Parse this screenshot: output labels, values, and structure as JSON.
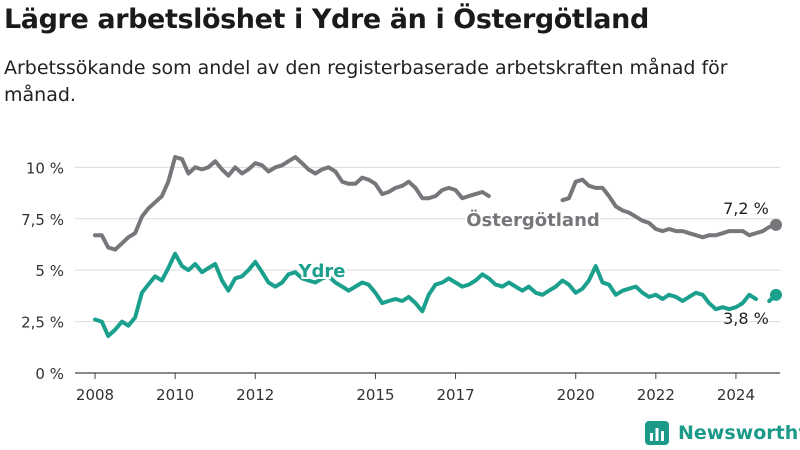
{
  "title": "Lägre arbetslöshet i Ydre än i Östergötland",
  "subtitle": "Arbetssökande som andel av den registerbaserade arbetskraften månad för månad.",
  "brand": {
    "name": "Newsworthy",
    "color": "#1b9a8a"
  },
  "chart_data": {
    "type": "line",
    "title": "Lägre arbetslöshet i Ydre än i Östergötland",
    "subtitle": "Arbetssökande som andel av den registerbaserade arbetskraften månad för månad.",
    "x_ticks": [
      2008,
      2010,
      2012,
      2015,
      2017,
      2020,
      2022,
      2024
    ],
    "y_ticks": [
      0,
      2.5,
      5,
      7.5,
      10
    ],
    "y_tick_labels": [
      "0 %",
      "2,5 %",
      "5 %",
      "7,5 %",
      "10 %"
    ],
    "xlim": [
      2007.5,
      2025.1
    ],
    "ylim": [
      0,
      10.6
    ],
    "grid": "horizontal",
    "series": [
      {
        "name": "Östergötland",
        "color": "#77767b",
        "end_label": "7,2 %",
        "points": [
          [
            2008.0,
            6.7
          ],
          [
            2008.17,
            6.7
          ],
          [
            2008.33,
            6.1
          ],
          [
            2008.5,
            6.0
          ],
          [
            2008.67,
            6.3
          ],
          [
            2008.83,
            6.6
          ],
          [
            2009.0,
            6.8
          ],
          [
            2009.17,
            7.6
          ],
          [
            2009.33,
            8.0
          ],
          [
            2009.5,
            8.3
          ],
          [
            2009.67,
            8.6
          ],
          [
            2009.83,
            9.3
          ],
          [
            2010.0,
            10.5
          ],
          [
            2010.17,
            10.4
          ],
          [
            2010.33,
            9.7
          ],
          [
            2010.5,
            10.0
          ],
          [
            2010.67,
            9.9
          ],
          [
            2010.83,
            10.0
          ],
          [
            2011.0,
            10.3
          ],
          [
            2011.17,
            9.9
          ],
          [
            2011.33,
            9.6
          ],
          [
            2011.5,
            10.0
          ],
          [
            2011.67,
            9.7
          ],
          [
            2011.83,
            9.9
          ],
          [
            2012.0,
            10.2
          ],
          [
            2012.17,
            10.1
          ],
          [
            2012.33,
            9.8
          ],
          [
            2012.5,
            10.0
          ],
          [
            2012.67,
            10.1
          ],
          [
            2012.83,
            10.3
          ],
          [
            2013.0,
            10.5
          ],
          [
            2013.17,
            10.2
          ],
          [
            2013.33,
            9.9
          ],
          [
            2013.5,
            9.7
          ],
          [
            2013.67,
            9.9
          ],
          [
            2013.83,
            10.0
          ],
          [
            2014.0,
            9.8
          ],
          [
            2014.17,
            9.3
          ],
          [
            2014.33,
            9.2
          ],
          [
            2014.5,
            9.2
          ],
          [
            2014.67,
            9.5
          ],
          [
            2014.83,
            9.4
          ],
          [
            2015.0,
            9.2
          ],
          [
            2015.17,
            8.7
          ],
          [
            2015.33,
            8.8
          ],
          [
            2015.5,
            9.0
          ],
          [
            2015.67,
            9.1
          ],
          [
            2015.83,
            9.3
          ],
          [
            2016.0,
            9.0
          ],
          [
            2016.17,
            8.5
          ],
          [
            2016.33,
            8.5
          ],
          [
            2016.5,
            8.6
          ],
          [
            2016.67,
            8.9
          ],
          [
            2016.83,
            9.0
          ],
          [
            2017.0,
            8.9
          ],
          [
            2017.17,
            8.5
          ],
          [
            2017.33,
            8.6
          ],
          [
            2017.5,
            8.7
          ],
          [
            2017.67,
            8.8
          ],
          [
            2017.83,
            8.6
          ]
        ],
        "points_2": [
          [
            2019.67,
            8.4
          ],
          [
            2019.83,
            8.5
          ],
          [
            2020.0,
            9.3
          ],
          [
            2020.17,
            9.4
          ],
          [
            2020.33,
            9.1
          ],
          [
            2020.5,
            9.0
          ],
          [
            2020.67,
            9.0
          ],
          [
            2020.83,
            8.6
          ],
          [
            2021.0,
            8.1
          ],
          [
            2021.17,
            7.9
          ],
          [
            2021.33,
            7.8
          ],
          [
            2021.5,
            7.6
          ],
          [
            2021.67,
            7.4
          ],
          [
            2021.83,
            7.3
          ],
          [
            2022.0,
            7.0
          ],
          [
            2022.17,
            6.9
          ],
          [
            2022.33,
            7.0
          ],
          [
            2022.5,
            6.9
          ],
          [
            2022.67,
            6.9
          ],
          [
            2022.83,
            6.8
          ],
          [
            2023.0,
            6.7
          ],
          [
            2023.17,
            6.6
          ],
          [
            2023.33,
            6.7
          ],
          [
            2023.5,
            6.7
          ],
          [
            2023.67,
            6.8
          ],
          [
            2023.83,
            6.9
          ],
          [
            2024.0,
            6.9
          ],
          [
            2024.17,
            6.9
          ],
          [
            2024.33,
            6.7
          ],
          [
            2024.5,
            6.8
          ],
          [
            2024.67,
            6.9
          ],
          [
            2024.83,
            7.1
          ],
          [
            2025.0,
            7.2
          ]
        ]
      },
      {
        "name": "Ydre",
        "color": "#1ba08e",
        "end_label": "3,8 %",
        "points": [
          [
            2008.0,
            2.6
          ],
          [
            2008.17,
            2.5
          ],
          [
            2008.33,
            1.8
          ],
          [
            2008.5,
            2.1
          ],
          [
            2008.67,
            2.5
          ],
          [
            2008.83,
            2.3
          ],
          [
            2009.0,
            2.7
          ],
          [
            2009.17,
            3.9
          ],
          [
            2009.33,
            4.3
          ],
          [
            2009.5,
            4.7
          ],
          [
            2009.67,
            4.5
          ],
          [
            2009.83,
            5.1
          ],
          [
            2010.0,
            5.8
          ],
          [
            2010.17,
            5.2
          ],
          [
            2010.33,
            5.0
          ],
          [
            2010.5,
            5.3
          ],
          [
            2010.67,
            4.9
          ],
          [
            2010.83,
            5.1
          ],
          [
            2011.0,
            5.3
          ],
          [
            2011.17,
            4.5
          ],
          [
            2011.33,
            4.0
          ],
          [
            2011.5,
            4.6
          ],
          [
            2011.67,
            4.7
          ],
          [
            2011.83,
            5.0
          ],
          [
            2012.0,
            5.4
          ],
          [
            2012.17,
            4.9
          ],
          [
            2012.33,
            4.4
          ],
          [
            2012.5,
            4.2
          ],
          [
            2012.67,
            4.4
          ],
          [
            2012.83,
            4.8
          ],
          [
            2013.0,
            4.9
          ],
          [
            2013.17,
            4.6
          ],
          [
            2013.33,
            4.5
          ],
          [
            2013.5,
            4.4
          ],
          [
            2013.67,
            4.6
          ],
          [
            2013.83,
            4.7
          ],
          [
            2014.0,
            4.4
          ],
          [
            2014.17,
            4.2
          ],
          [
            2014.33,
            4.0
          ],
          [
            2014.5,
            4.2
          ],
          [
            2014.67,
            4.4
          ],
          [
            2014.83,
            4.3
          ],
          [
            2015.0,
            3.9
          ],
          [
            2015.17,
            3.4
          ],
          [
            2015.33,
            3.5
          ],
          [
            2015.5,
            3.6
          ],
          [
            2015.67,
            3.5
          ],
          [
            2015.83,
            3.7
          ],
          [
            2016.0,
            3.4
          ],
          [
            2016.17,
            3.0
          ],
          [
            2016.33,
            3.8
          ],
          [
            2016.5,
            4.3
          ],
          [
            2016.67,
            4.4
          ],
          [
            2016.83,
            4.6
          ],
          [
            2017.0,
            4.4
          ],
          [
            2017.17,
            4.2
          ],
          [
            2017.33,
            4.3
          ],
          [
            2017.5,
            4.5
          ],
          [
            2017.67,
            4.8
          ],
          [
            2017.83,
            4.6
          ],
          [
            2018.0,
            4.3
          ],
          [
            2018.17,
            4.2
          ],
          [
            2018.33,
            4.4
          ],
          [
            2018.5,
            4.2
          ],
          [
            2018.67,
            4.0
          ],
          [
            2018.83,
            4.2
          ],
          [
            2019.0,
            3.9
          ],
          [
            2019.17,
            3.8
          ],
          [
            2019.33,
            4.0
          ],
          [
            2019.5,
            4.2
          ],
          [
            2019.67,
            4.5
          ],
          [
            2019.83,
            4.3
          ],
          [
            2020.0,
            3.9
          ],
          [
            2020.17,
            4.1
          ],
          [
            2020.33,
            4.5
          ],
          [
            2020.5,
            5.2
          ],
          [
            2020.67,
            4.4
          ],
          [
            2020.83,
            4.3
          ],
          [
            2021.0,
            3.8
          ],
          [
            2021.17,
            4.0
          ],
          [
            2021.33,
            4.1
          ],
          [
            2021.5,
            4.2
          ],
          [
            2021.67,
            3.9
          ],
          [
            2021.83,
            3.7
          ],
          [
            2022.0,
            3.8
          ],
          [
            2022.17,
            3.6
          ],
          [
            2022.33,
            3.8
          ],
          [
            2022.5,
            3.7
          ],
          [
            2022.67,
            3.5
          ],
          [
            2022.83,
            3.7
          ],
          [
            2023.0,
            3.9
          ],
          [
            2023.17,
            3.8
          ],
          [
            2023.33,
            3.4
          ],
          [
            2023.5,
            3.1
          ],
          [
            2023.67,
            3.2
          ],
          [
            2023.83,
            3.1
          ],
          [
            2024.0,
            3.2
          ],
          [
            2024.17,
            3.4
          ],
          [
            2024.33,
            3.8
          ],
          [
            2024.5,
            3.6
          ]
        ],
        "points_2": [
          [
            2024.83,
            3.5
          ],
          [
            2025.0,
            3.8
          ]
        ]
      }
    ]
  }
}
